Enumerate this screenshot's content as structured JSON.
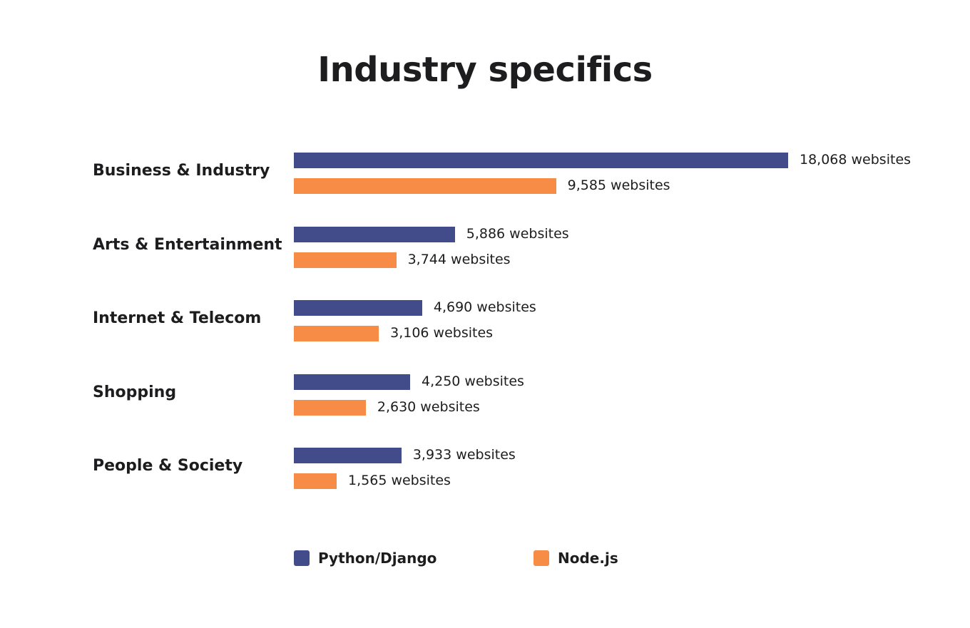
{
  "chart_data": {
    "type": "bar",
    "orientation": "horizontal",
    "title": "Industry specifics",
    "categories": [
      "Business & Industry",
      "Arts & Entertainment",
      "Internet & Telecom",
      "Shopping",
      "People & Society"
    ],
    "series": [
      {
        "name": "Python/Django",
        "color": "#434c8a",
        "values": [
          18068,
          5886,
          4690,
          4250,
          3933
        ],
        "labels": [
          "18,068 websites",
          "5,886 websites",
          "4,690 websites",
          "4,250 websites",
          "3,933 websites"
        ]
      },
      {
        "name": "Node.js",
        "color": "#f68c45",
        "values": [
          9585,
          3744,
          3106,
          2630,
          1565
        ],
        "labels": [
          "9,585 websites",
          "3,744 websites",
          "3,106 websites",
          "2,630 websites",
          "1,565 websites"
        ]
      }
    ],
    "xlabel": "",
    "ylabel": "",
    "grid": false,
    "legend": "bottom"
  }
}
